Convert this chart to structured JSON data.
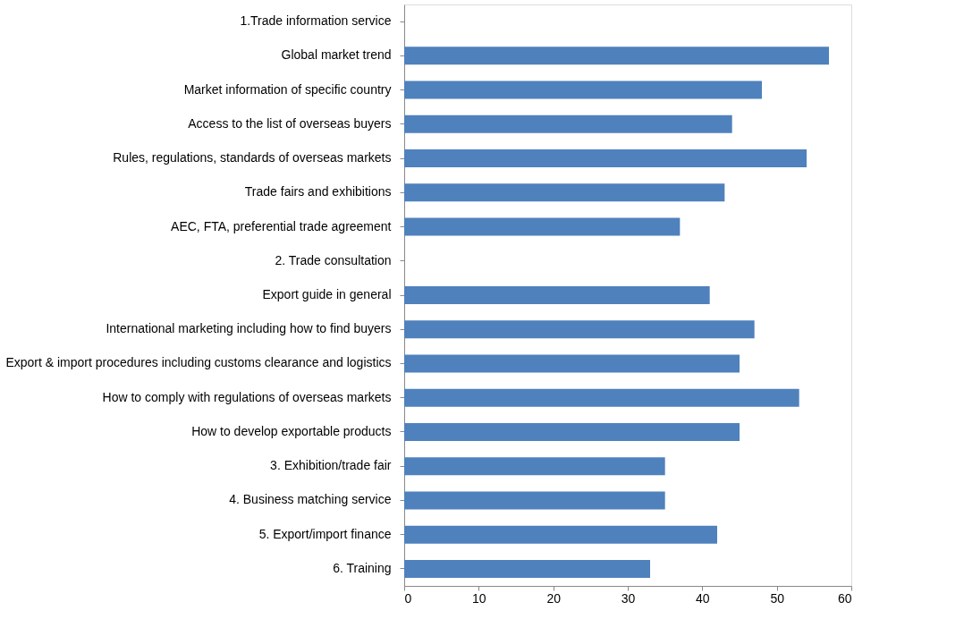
{
  "chart_data": {
    "type": "bar",
    "orientation": "horizontal",
    "categories": [
      "1.Trade information service",
      "Global market trend",
      "Market information of specific country",
      "Access to the list of overseas buyers",
      "Rules, regulations, standards of overseas markets",
      "Trade fairs and exhibitions",
      "AEC, FTA, preferential trade agreement",
      "2. Trade consultation",
      "Export guide in general",
      "International marketing including how to find buyers",
      "Export & import procedures including customs clearance and logistics",
      "How to comply with regulations of overseas markets",
      "How to develop exportable products",
      "3. Exhibition/trade fair",
      "4. Business matching service",
      "5. Export/import finance",
      "6. Training"
    ],
    "values": [
      null,
      57,
      48,
      44,
      54,
      43,
      37,
      null,
      41,
      47,
      45,
      53,
      45,
      35,
      35,
      42,
      33
    ],
    "color": "#4f81bd",
    "xlim": [
      0,
      60
    ],
    "xticks": [
      0,
      10,
      20,
      30,
      40,
      50,
      60
    ],
    "grid": false
  }
}
